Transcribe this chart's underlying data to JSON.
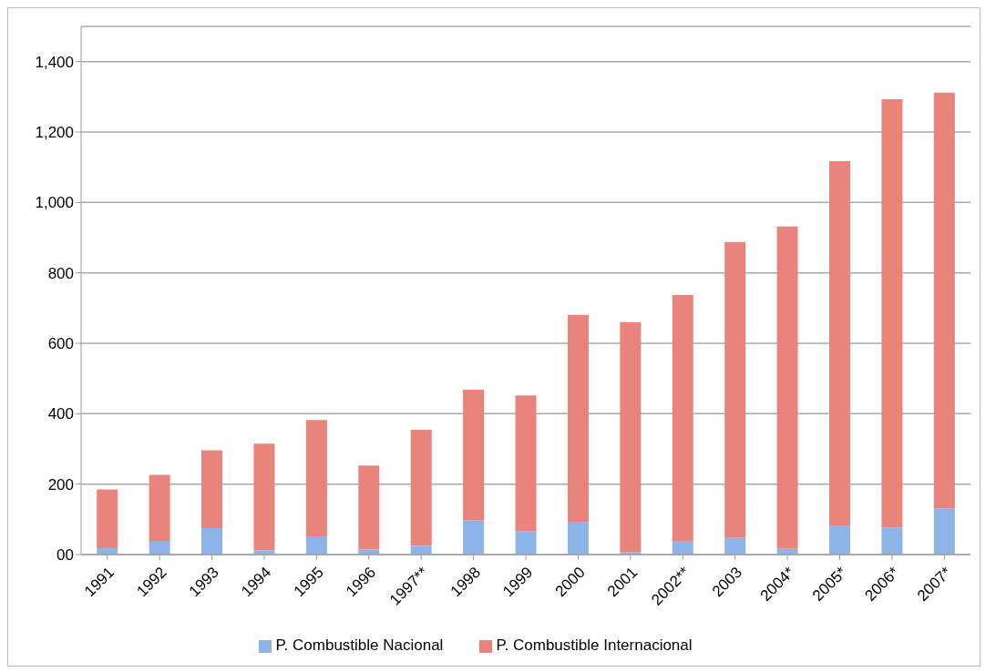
{
  "chart_data": {
    "type": "bar",
    "stacked": true,
    "categories": [
      "1991",
      "1992",
      "1993",
      "1994",
      "1995",
      "1996",
      "1997**",
      "1998",
      "1999",
      "2000",
      "2001",
      "2002**",
      "2003",
      "2004*",
      "2005*",
      "2006*",
      "2007*"
    ],
    "series": [
      {
        "name": "P. Combustible Nacional",
        "color": "#8db4e8",
        "values": [
          18,
          39,
          75,
          12,
          52,
          14,
          25,
          97,
          65,
          93,
          7,
          37,
          47,
          16,
          83,
          77,
          131
        ]
      },
      {
        "name": "P. Combustible Internacional",
        "color": "#e9847c",
        "values": [
          167,
          187,
          221,
          303,
          330,
          239,
          329,
          371,
          387,
          588,
          653,
          700,
          841,
          916,
          1034,
          1216,
          1181
        ]
      }
    ],
    "ylim": [
      0,
      1500
    ],
    "yticks": [
      {
        "value": 0,
        "label": "00"
      },
      200,
      400,
      600,
      800,
      {
        "value": 1000,
        "label": "1,000"
      },
      {
        "value": 1200,
        "label": "1,200"
      },
      {
        "value": 1400,
        "label": "1,400"
      }
    ],
    "grid": "y",
    "legend": "bottom"
  }
}
